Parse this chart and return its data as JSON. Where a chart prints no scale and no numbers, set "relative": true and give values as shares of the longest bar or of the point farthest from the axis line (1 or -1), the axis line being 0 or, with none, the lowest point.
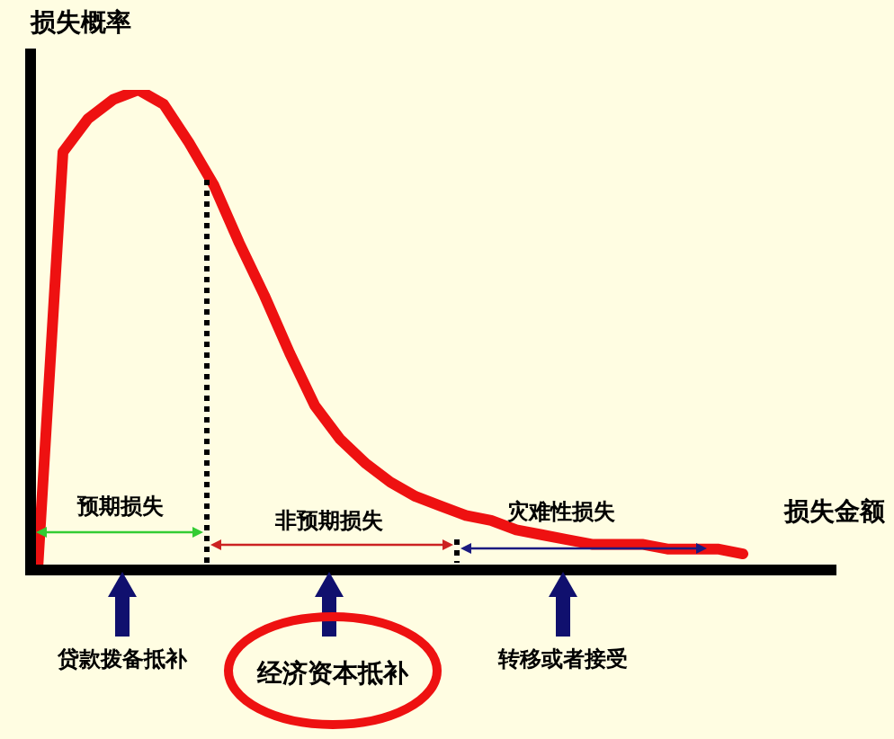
{
  "chart_data": {
    "type": "line",
    "relative": true,
    "xlabel": "损失金额",
    "ylabel": "损失概率",
    "categories": [
      null,
      null,
      null,
      null,
      null,
      null,
      null,
      null,
      null,
      null,
      null,
      null,
      null,
      null,
      null,
      null,
      null,
      null,
      null,
      null,
      null,
      null,
      null,
      null,
      null,
      null,
      null,
      null,
      null
    ],
    "series": [
      {
        "color": "#ee1111",
        "values": [
          0,
          0.87,
          0.94,
          0.98,
          1,
          0.97,
          0.89,
          0.8,
          0.68,
          0.57,
          0.45,
          0.34,
          0.27,
          0.22,
          0.18,
          0.15,
          0.13,
          0.11,
          0.1,
          0.08,
          0.07,
          0.06,
          0.05,
          0.05,
          0.05,
          0.04,
          0.04,
          0.04,
          0.03
        ]
      }
    ],
    "marker": "none",
    "line_style": "solid",
    "grid": false,
    "legend": false,
    "annotations": [
      "预期损失",
      "非预期损失",
      "灾难性损失",
      "贷款拨备抵补",
      "经济资本抵补",
      "转移或者接受"
    ]
  }
}
